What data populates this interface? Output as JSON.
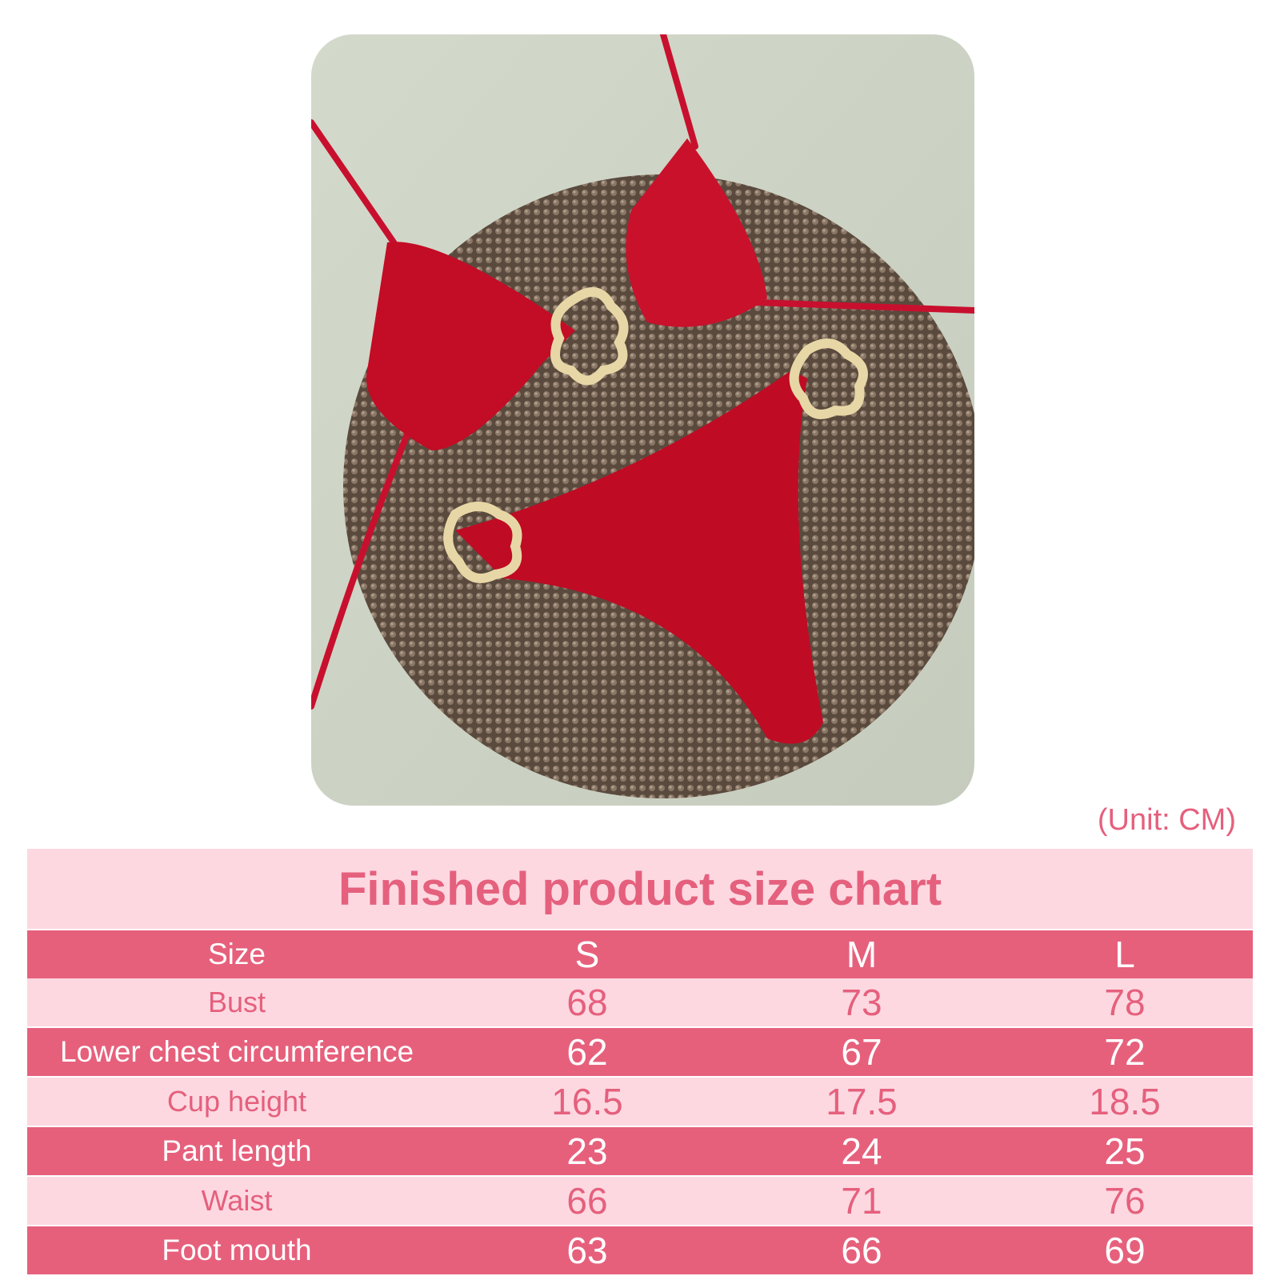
{
  "product_photo": {
    "alt_colors": {
      "background": "#cdd3c5",
      "mat": "#6b5a4c",
      "fabric": "#c8102e",
      "hardware": "#e8d7a6"
    }
  },
  "unit_label": "(Unit: CM)",
  "size_chart": {
    "title": "Finished product size chart",
    "header": [
      "Size",
      "S",
      "M",
      "L"
    ],
    "rows": [
      {
        "label": "Bust",
        "values": [
          "68",
          "73",
          "78"
        ],
        "style": "light"
      },
      {
        "label": "Lower chest circumference",
        "values": [
          "62",
          "67",
          "72"
        ],
        "style": "dark"
      },
      {
        "label": "Cup height",
        "values": [
          "16.5",
          "17.5",
          "18.5"
        ],
        "style": "light"
      },
      {
        "label": "Pant length",
        "values": [
          "23",
          "24",
          "25"
        ],
        "style": "dark"
      },
      {
        "label": "Waist",
        "values": [
          "66",
          "71",
          "76"
        ],
        "style": "light"
      },
      {
        "label": "Foot mouth",
        "values": [
          "63",
          "66",
          "69"
        ],
        "style": "dark"
      }
    ],
    "colors": {
      "light": "#fdd8e1",
      "dark": "#e6607c",
      "text": "#e5607d"
    }
  }
}
